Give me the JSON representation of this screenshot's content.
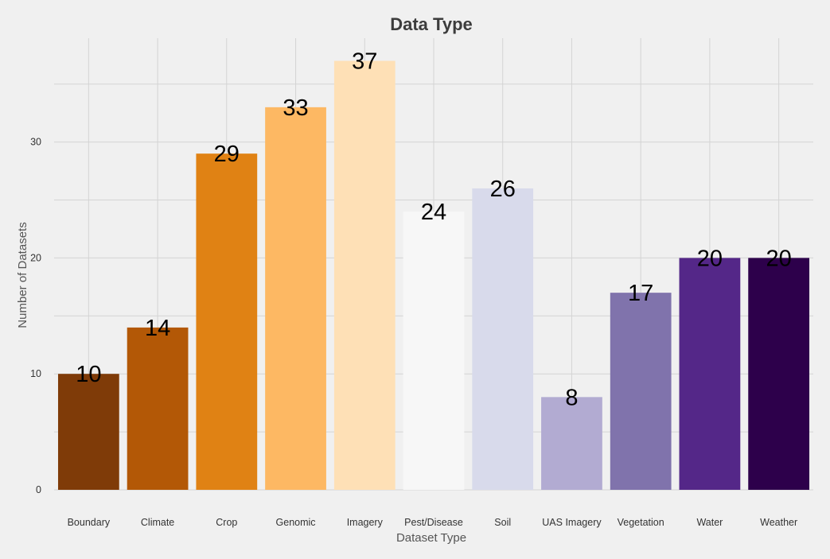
{
  "chart_data": {
    "type": "bar",
    "title": "Data Type",
    "xlabel": "Dataset Type",
    "ylabel": "Number of Datasets",
    "categories": [
      "Boundary",
      "Climate",
      "Crop",
      "Genomic",
      "Imagery",
      "Pest/Disease",
      "Soil",
      "UAS Imagery",
      "Vegetation",
      "Water",
      "Weather"
    ],
    "values": [
      10,
      14,
      29,
      33,
      37,
      24,
      26,
      8,
      17,
      20,
      20
    ],
    "colors": [
      "#7f3b08",
      "#b35806",
      "#e08214",
      "#fdb863",
      "#fee0b6",
      "#f7f7f7",
      "#d8daeb",
      "#b2abd2",
      "#8073ac",
      "#542788",
      "#2d004b"
    ],
    "y_ticks": [
      0,
      10,
      20,
      30
    ],
    "ylim": [
      0,
      40
    ],
    "grid": true,
    "legend": false,
    "data_labels": true
  }
}
